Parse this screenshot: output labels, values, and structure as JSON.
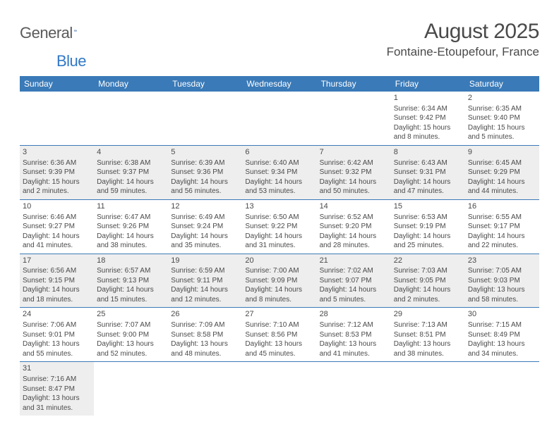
{
  "logo": {
    "general": "General",
    "blue": "Blue"
  },
  "header": {
    "title": "August 2025",
    "location": "Fontaine-Etoupefour, France"
  },
  "colors": {
    "header_bg": "#3a7ab8",
    "header_text": "#ffffff",
    "shade_bg": "#eeeeee",
    "rule": "#3a7ab8",
    "logo_blue": "#3178c6",
    "text": "#4a4a4a"
  },
  "days": [
    "Sunday",
    "Monday",
    "Tuesday",
    "Wednesday",
    "Thursday",
    "Friday",
    "Saturday"
  ],
  "weeks": [
    [
      {
        "blank": true
      },
      {
        "blank": true
      },
      {
        "blank": true
      },
      {
        "blank": true
      },
      {
        "blank": true
      },
      {
        "n": "1",
        "sr": "Sunrise: 6:34 AM",
        "ss": "Sunset: 9:42 PM",
        "d1": "Daylight: 15 hours",
        "d2": "and 8 minutes."
      },
      {
        "n": "2",
        "sr": "Sunrise: 6:35 AM",
        "ss": "Sunset: 9:40 PM",
        "d1": "Daylight: 15 hours",
        "d2": "and 5 minutes."
      }
    ],
    [
      {
        "n": "3",
        "sr": "Sunrise: 6:36 AM",
        "ss": "Sunset: 9:39 PM",
        "d1": "Daylight: 15 hours",
        "d2": "and 2 minutes.",
        "shade": true
      },
      {
        "n": "4",
        "sr": "Sunrise: 6:38 AM",
        "ss": "Sunset: 9:37 PM",
        "d1": "Daylight: 14 hours",
        "d2": "and 59 minutes.",
        "shade": true
      },
      {
        "n": "5",
        "sr": "Sunrise: 6:39 AM",
        "ss": "Sunset: 9:36 PM",
        "d1": "Daylight: 14 hours",
        "d2": "and 56 minutes.",
        "shade": true
      },
      {
        "n": "6",
        "sr": "Sunrise: 6:40 AM",
        "ss": "Sunset: 9:34 PM",
        "d1": "Daylight: 14 hours",
        "d2": "and 53 minutes.",
        "shade": true
      },
      {
        "n": "7",
        "sr": "Sunrise: 6:42 AM",
        "ss": "Sunset: 9:32 PM",
        "d1": "Daylight: 14 hours",
        "d2": "and 50 minutes.",
        "shade": true
      },
      {
        "n": "8",
        "sr": "Sunrise: 6:43 AM",
        "ss": "Sunset: 9:31 PM",
        "d1": "Daylight: 14 hours",
        "d2": "and 47 minutes.",
        "shade": true
      },
      {
        "n": "9",
        "sr": "Sunrise: 6:45 AM",
        "ss": "Sunset: 9:29 PM",
        "d1": "Daylight: 14 hours",
        "d2": "and 44 minutes.",
        "shade": true
      }
    ],
    [
      {
        "n": "10",
        "sr": "Sunrise: 6:46 AM",
        "ss": "Sunset: 9:27 PM",
        "d1": "Daylight: 14 hours",
        "d2": "and 41 minutes."
      },
      {
        "n": "11",
        "sr": "Sunrise: 6:47 AM",
        "ss": "Sunset: 9:26 PM",
        "d1": "Daylight: 14 hours",
        "d2": "and 38 minutes."
      },
      {
        "n": "12",
        "sr": "Sunrise: 6:49 AM",
        "ss": "Sunset: 9:24 PM",
        "d1": "Daylight: 14 hours",
        "d2": "and 35 minutes."
      },
      {
        "n": "13",
        "sr": "Sunrise: 6:50 AM",
        "ss": "Sunset: 9:22 PM",
        "d1": "Daylight: 14 hours",
        "d2": "and 31 minutes."
      },
      {
        "n": "14",
        "sr": "Sunrise: 6:52 AM",
        "ss": "Sunset: 9:20 PM",
        "d1": "Daylight: 14 hours",
        "d2": "and 28 minutes."
      },
      {
        "n": "15",
        "sr": "Sunrise: 6:53 AM",
        "ss": "Sunset: 9:19 PM",
        "d1": "Daylight: 14 hours",
        "d2": "and 25 minutes."
      },
      {
        "n": "16",
        "sr": "Sunrise: 6:55 AM",
        "ss": "Sunset: 9:17 PM",
        "d1": "Daylight: 14 hours",
        "d2": "and 22 minutes."
      }
    ],
    [
      {
        "n": "17",
        "sr": "Sunrise: 6:56 AM",
        "ss": "Sunset: 9:15 PM",
        "d1": "Daylight: 14 hours",
        "d2": "and 18 minutes.",
        "shade": true
      },
      {
        "n": "18",
        "sr": "Sunrise: 6:57 AM",
        "ss": "Sunset: 9:13 PM",
        "d1": "Daylight: 14 hours",
        "d2": "and 15 minutes.",
        "shade": true
      },
      {
        "n": "19",
        "sr": "Sunrise: 6:59 AM",
        "ss": "Sunset: 9:11 PM",
        "d1": "Daylight: 14 hours",
        "d2": "and 12 minutes.",
        "shade": true
      },
      {
        "n": "20",
        "sr": "Sunrise: 7:00 AM",
        "ss": "Sunset: 9:09 PM",
        "d1": "Daylight: 14 hours",
        "d2": "and 8 minutes.",
        "shade": true
      },
      {
        "n": "21",
        "sr": "Sunrise: 7:02 AM",
        "ss": "Sunset: 9:07 PM",
        "d1": "Daylight: 14 hours",
        "d2": "and 5 minutes.",
        "shade": true
      },
      {
        "n": "22",
        "sr": "Sunrise: 7:03 AM",
        "ss": "Sunset: 9:05 PM",
        "d1": "Daylight: 14 hours",
        "d2": "and 2 minutes.",
        "shade": true
      },
      {
        "n": "23",
        "sr": "Sunrise: 7:05 AM",
        "ss": "Sunset: 9:03 PM",
        "d1": "Daylight: 13 hours",
        "d2": "and 58 minutes.",
        "shade": true
      }
    ],
    [
      {
        "n": "24",
        "sr": "Sunrise: 7:06 AM",
        "ss": "Sunset: 9:01 PM",
        "d1": "Daylight: 13 hours",
        "d2": "and 55 minutes."
      },
      {
        "n": "25",
        "sr": "Sunrise: 7:07 AM",
        "ss": "Sunset: 9:00 PM",
        "d1": "Daylight: 13 hours",
        "d2": "and 52 minutes."
      },
      {
        "n": "26",
        "sr": "Sunrise: 7:09 AM",
        "ss": "Sunset: 8:58 PM",
        "d1": "Daylight: 13 hours",
        "d2": "and 48 minutes."
      },
      {
        "n": "27",
        "sr": "Sunrise: 7:10 AM",
        "ss": "Sunset: 8:56 PM",
        "d1": "Daylight: 13 hours",
        "d2": "and 45 minutes."
      },
      {
        "n": "28",
        "sr": "Sunrise: 7:12 AM",
        "ss": "Sunset: 8:53 PM",
        "d1": "Daylight: 13 hours",
        "d2": "and 41 minutes."
      },
      {
        "n": "29",
        "sr": "Sunrise: 7:13 AM",
        "ss": "Sunset: 8:51 PM",
        "d1": "Daylight: 13 hours",
        "d2": "and 38 minutes."
      },
      {
        "n": "30",
        "sr": "Sunrise: 7:15 AM",
        "ss": "Sunset: 8:49 PM",
        "d1": "Daylight: 13 hours",
        "d2": "and 34 minutes."
      }
    ],
    [
      {
        "n": "31",
        "sr": "Sunrise: 7:16 AM",
        "ss": "Sunset: 8:47 PM",
        "d1": "Daylight: 13 hours",
        "d2": "and 31 minutes.",
        "shade": true
      },
      {
        "blank": true
      },
      {
        "blank": true
      },
      {
        "blank": true
      },
      {
        "blank": true
      },
      {
        "blank": true
      },
      {
        "blank": true
      }
    ]
  ]
}
